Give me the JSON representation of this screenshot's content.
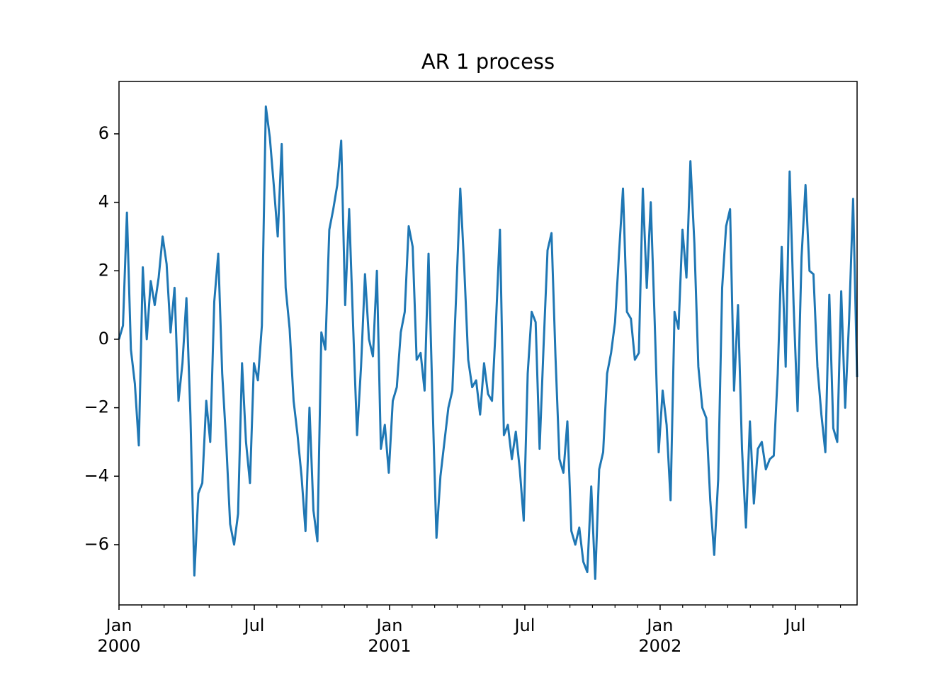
{
  "chart_data": {
    "type": "line",
    "title": "AR 1 process",
    "color": "#1f77b4",
    "x": [
      0,
      0.176,
      0.352,
      0.528,
      0.704,
      0.88,
      1.056,
      1.232,
      1.408,
      1.584,
      1.76,
      1.936,
      2.112,
      2.288,
      2.464,
      2.64,
      2.816,
      2.992,
      3.168,
      3.344,
      3.52,
      3.696,
      3.872,
      4.048,
      4.224,
      4.4,
      4.576,
      4.752,
      4.928,
      5.104,
      5.28,
      5.456,
      5.632,
      5.808,
      5.984,
      6.16,
      6.336,
      6.512,
      6.688,
      6.864,
      7.04,
      7.216,
      7.392,
      7.568,
      7.744,
      7.92,
      8.096,
      8.272,
      8.448,
      8.624,
      8.8,
      8.976,
      9.152,
      9.328,
      9.504,
      9.68,
      9.856,
      10.032,
      10.208,
      10.384,
      10.56,
      10.736,
      10.912,
      11.088,
      11.264,
      11.44,
      11.616,
      11.792,
      11.968,
      12.144,
      12.32,
      12.496,
      12.672,
      12.848,
      13.024,
      13.2,
      13.376,
      13.552,
      13.728,
      13.904,
      14.08,
      14.256,
      14.432,
      14.608,
      14.784,
      14.96,
      15.136,
      15.312,
      15.488,
      15.664,
      15.84,
      16.016,
      16.192,
      16.368,
      16.544,
      16.72,
      16.896,
      17.072,
      17.248,
      17.424,
      17.6,
      17.776,
      17.952,
      18.128,
      18.304,
      18.48,
      18.656,
      18.832,
      19.008,
      19.184,
      19.36,
      19.536,
      19.712,
      19.888,
      20.064,
      20.24,
      20.416,
      20.592,
      20.768,
      20.944,
      21.12,
      21.296,
      21.472,
      21.648,
      21.824,
      22,
      22.176,
      22.352,
      22.528,
      22.704,
      22.88,
      23.056,
      23.232,
      23.408,
      23.584,
      23.76,
      23.936,
      24.112,
      24.288,
      24.464,
      24.64,
      24.816,
      24.992,
      25.168,
      25.344,
      25.52,
      25.696,
      25.872,
      26.048,
      26.224,
      26.4,
      26.576,
      26.752,
      26.928,
      27.104,
      27.28,
      27.456,
      27.632,
      27.808,
      27.984,
      28.16,
      28.336,
      28.512,
      28.688,
      28.864,
      29.04,
      29.216,
      29.392,
      29.568,
      29.744,
      29.92,
      30.096,
      30.272,
      30.448,
      30.624,
      30.8,
      30.976,
      31.152,
      31.328,
      31.504,
      31.68,
      31.856,
      32.032,
      32.208,
      32.384,
      32.56,
      32.736
    ],
    "values": [
      0,
      0.4,
      3.7,
      -0.3,
      -1.3,
      -3.1,
      2.1,
      0,
      1.7,
      1,
      1.8,
      3,
      2.2,
      0.2,
      1.5,
      -1.8,
      -0.7,
      1.2,
      -2.2,
      -6.9,
      -4.5,
      -4.2,
      -1.8,
      -3,
      1.1,
      2.5,
      -1,
      -3,
      -5.4,
      -6,
      -5.1,
      -0.7,
      -3,
      -4.2,
      -0.7,
      -1.2,
      0.4,
      6.8,
      5.9,
      4.5,
      3,
      5.7,
      1.5,
      0.3,
      -1.8,
      -2.8,
      -4,
      -5.6,
      -2,
      -5,
      -5.9,
      0.2,
      -0.3,
      3.2,
      3.8,
      4.5,
      5.8,
      1,
      3.8,
      0.4,
      -2.8,
      -0.8,
      1.9,
      0,
      -0.5,
      2,
      -3.2,
      -2.5,
      -3.9,
      -1.8,
      -1.4,
      0.2,
      0.8,
      3.3,
      2.7,
      -0.6,
      -0.4,
      -1.5,
      2.5,
      -1.8,
      -5.8,
      -4,
      -3,
      -2,
      -1.5,
      1.4,
      4.4,
      2.1,
      -0.6,
      -1.4,
      -1.2,
      -2.2,
      -0.7,
      -1.6,
      -1.8,
      0.5,
      3.2,
      -2.8,
      -2.5,
      -3.5,
      -2.7,
      -3.8,
      -5.3,
      -1,
      0.8,
      0.5,
      -3.2,
      -0.2,
      2.6,
      3.1,
      -0.5,
      -3.5,
      -3.9,
      -2.4,
      -5.6,
      -6,
      -5.5,
      -6.5,
      -6.8,
      -4.3,
      -7,
      -3.8,
      -3.3,
      -1,
      -0.4,
      0.5,
      2.5,
      4.4,
      0.8,
      0.6,
      -0.6,
      -0.4,
      4.4,
      1.5,
      4,
      0.5,
      -3.3,
      -1.5,
      -2.5,
      -4.7,
      0.8,
      0.3,
      3.2,
      1.8,
      5.2,
      2.8,
      -0.8,
      -2,
      -2.3,
      -4.7,
      -6.3,
      -4.1,
      1.5,
      3.3,
      3.8,
      -1.5,
      1,
      -3.2,
      -5.5,
      -2.4,
      -4.8,
      -3.2,
      -3,
      -3.8,
      -3.5,
      -3.4,
      -1,
      2.7,
      -0.8,
      4.9,
      1,
      -2.1,
      2.4,
      4.5,
      2,
      1.9,
      -0.8,
      -2.2,
      -3.3,
      1.3,
      -2.6,
      -3,
      1.4,
      -2,
      0.6,
      4.1,
      -1.1
    ],
    "xlim": [
      0,
      32.736
    ],
    "ylim": [
      -7.76,
      7.53
    ],
    "xticks": [
      {
        "value": 0,
        "label": "Jan\n2000"
      },
      {
        "value": 6,
        "label": "Jul"
      },
      {
        "value": 12,
        "label": "Jan\n2001"
      },
      {
        "value": 18,
        "label": "Jul"
      },
      {
        "value": 24,
        "label": "Jan\n2002"
      },
      {
        "value": 30,
        "label": "Jul"
      }
    ],
    "xminorticks": [
      1,
      2,
      3,
      4,
      5,
      7,
      8,
      9,
      10,
      11,
      13,
      14,
      15,
      16,
      17,
      19,
      20,
      21,
      22,
      23,
      25,
      26,
      27,
      28,
      29,
      31,
      32
    ],
    "yticks": [
      {
        "value": -6,
        "label": "−6"
      },
      {
        "value": -4,
        "label": "−4"
      },
      {
        "value": -2,
        "label": "−2"
      },
      0,
      2,
      4,
      6
    ]
  }
}
